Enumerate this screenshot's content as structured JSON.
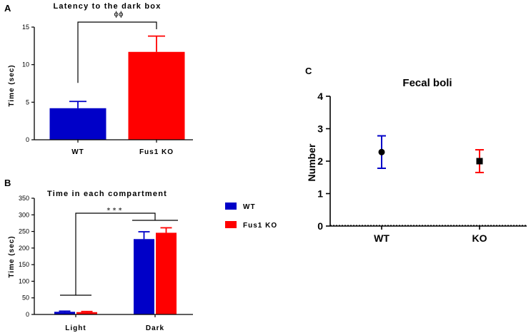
{
  "figure": {
    "panel_labels": [
      "A",
      "B",
      "C"
    ],
    "legend": [
      {
        "name": "WT",
        "color": "#0000c8"
      },
      {
        "name": "Fus1 KO",
        "color": "#ff0000"
      }
    ]
  },
  "chart_data": [
    {
      "id": "A",
      "type": "bar",
      "title": "Latency to the dark box",
      "ylabel": "Time (sec)",
      "xlabel": "",
      "categories": [
        "WT",
        "Fus1 KO"
      ],
      "values": [
        4.2,
        11.7
      ],
      "errors": [
        0.9,
        2.1
      ],
      "colors": [
        "#0000c8",
        "#ff0000"
      ],
      "ylim": [
        0,
        15
      ],
      "yticks": [
        0,
        5,
        10,
        15
      ],
      "significance": "ϕϕ"
    },
    {
      "id": "B",
      "type": "bar",
      "title": "Time in each compartment",
      "ylabel": "Time (sec)",
      "xlabel": "",
      "categories": [
        "Light",
        "Dark"
      ],
      "series": [
        {
          "name": "WT",
          "values": [
            8,
            227
          ],
          "errors": [
            2,
            22
          ],
          "color": "#0000c8"
        },
        {
          "name": "Fus1 KO",
          "values": [
            7,
            246
          ],
          "errors": [
            2,
            15
          ],
          "color": "#ff0000"
        }
      ],
      "ylim": [
        0,
        350
      ],
      "yticks": [
        0,
        50,
        100,
        150,
        200,
        250,
        300,
        350
      ],
      "significance": "* * *"
    },
    {
      "id": "C",
      "type": "scatter",
      "title": "Fecal boli",
      "ylabel": "Number",
      "xlabel": "",
      "categories": [
        "WT",
        "KO"
      ],
      "values": [
        2.28,
        2.0
      ],
      "errors": [
        0.5,
        0.35
      ],
      "colors": [
        "#0000c8",
        "#ff0000"
      ],
      "markers": [
        "circle",
        "square"
      ],
      "ylim": [
        0,
        4
      ],
      "yticks": [
        0,
        1,
        2,
        3,
        4
      ]
    }
  ]
}
